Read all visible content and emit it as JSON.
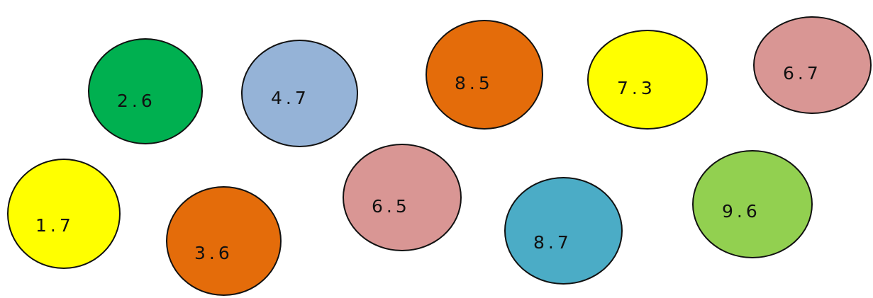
{
  "bubbles": [
    {
      "label": "2.6",
      "fill": "#00b050"
    },
    {
      "label": "4.7",
      "fill": "#95b3d7"
    },
    {
      "label": "8.5",
      "fill": "#e46c0a"
    },
    {
      "label": "7.3",
      "fill": "#ffff00"
    },
    {
      "label": "6.7",
      "fill": "#d99694"
    },
    {
      "label": "1.7",
      "fill": "#ffff00"
    },
    {
      "label": "3.6",
      "fill": "#e46c0a"
    },
    {
      "label": "6.5",
      "fill": "#d99694"
    },
    {
      "label": "8.7",
      "fill": "#4bacc6"
    },
    {
      "label": "9.6",
      "fill": "#92d050"
    }
  ]
}
